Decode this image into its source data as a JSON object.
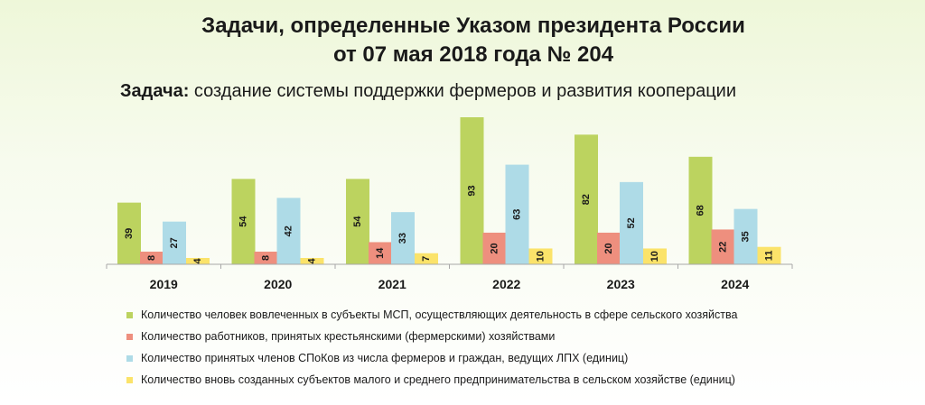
{
  "header": {
    "title_line1": "Задачи, определенные Указом президента России",
    "title_line2": "от 07 мая 2018 года № 204",
    "task_label": "Задача:",
    "task_text": " создание системы поддержки фермеров и развития кооперации"
  },
  "chart_data": {
    "type": "bar",
    "categories": [
      "2019",
      "2020",
      "2021",
      "2022",
      "2023",
      "2024"
    ],
    "series": [
      {
        "name": "Количество человек вовлеченных в субъекты МСП, осуществляющих деятельность в сфере сельского хозяйства",
        "color": "#bcd35f",
        "values": [
          39,
          54,
          54,
          93,
          82,
          68
        ]
      },
      {
        "name": "Количество работников, принятых крестьянскими (фермерскими) хозяйствами",
        "color": "#ee8f7e",
        "values": [
          8,
          8,
          14,
          20,
          20,
          22
        ]
      },
      {
        "name": "Количество принятых членов СПоКов из числа фермеров и граждан, ведущих ЛПХ (единиц)",
        "color": "#aedbe7",
        "values": [
          27,
          42,
          33,
          63,
          52,
          35
        ]
      },
      {
        "name": "Количество вновь созданных субъектов малого и среднего предпринимательства в сельском хозяйстве (единиц)",
        "color": "#fbe36a",
        "values": [
          4,
          4,
          7,
          10,
          10,
          11
        ]
      }
    ],
    "ylim": [
      0,
      93
    ],
    "grid": false,
    "legend_position": "bottom"
  }
}
